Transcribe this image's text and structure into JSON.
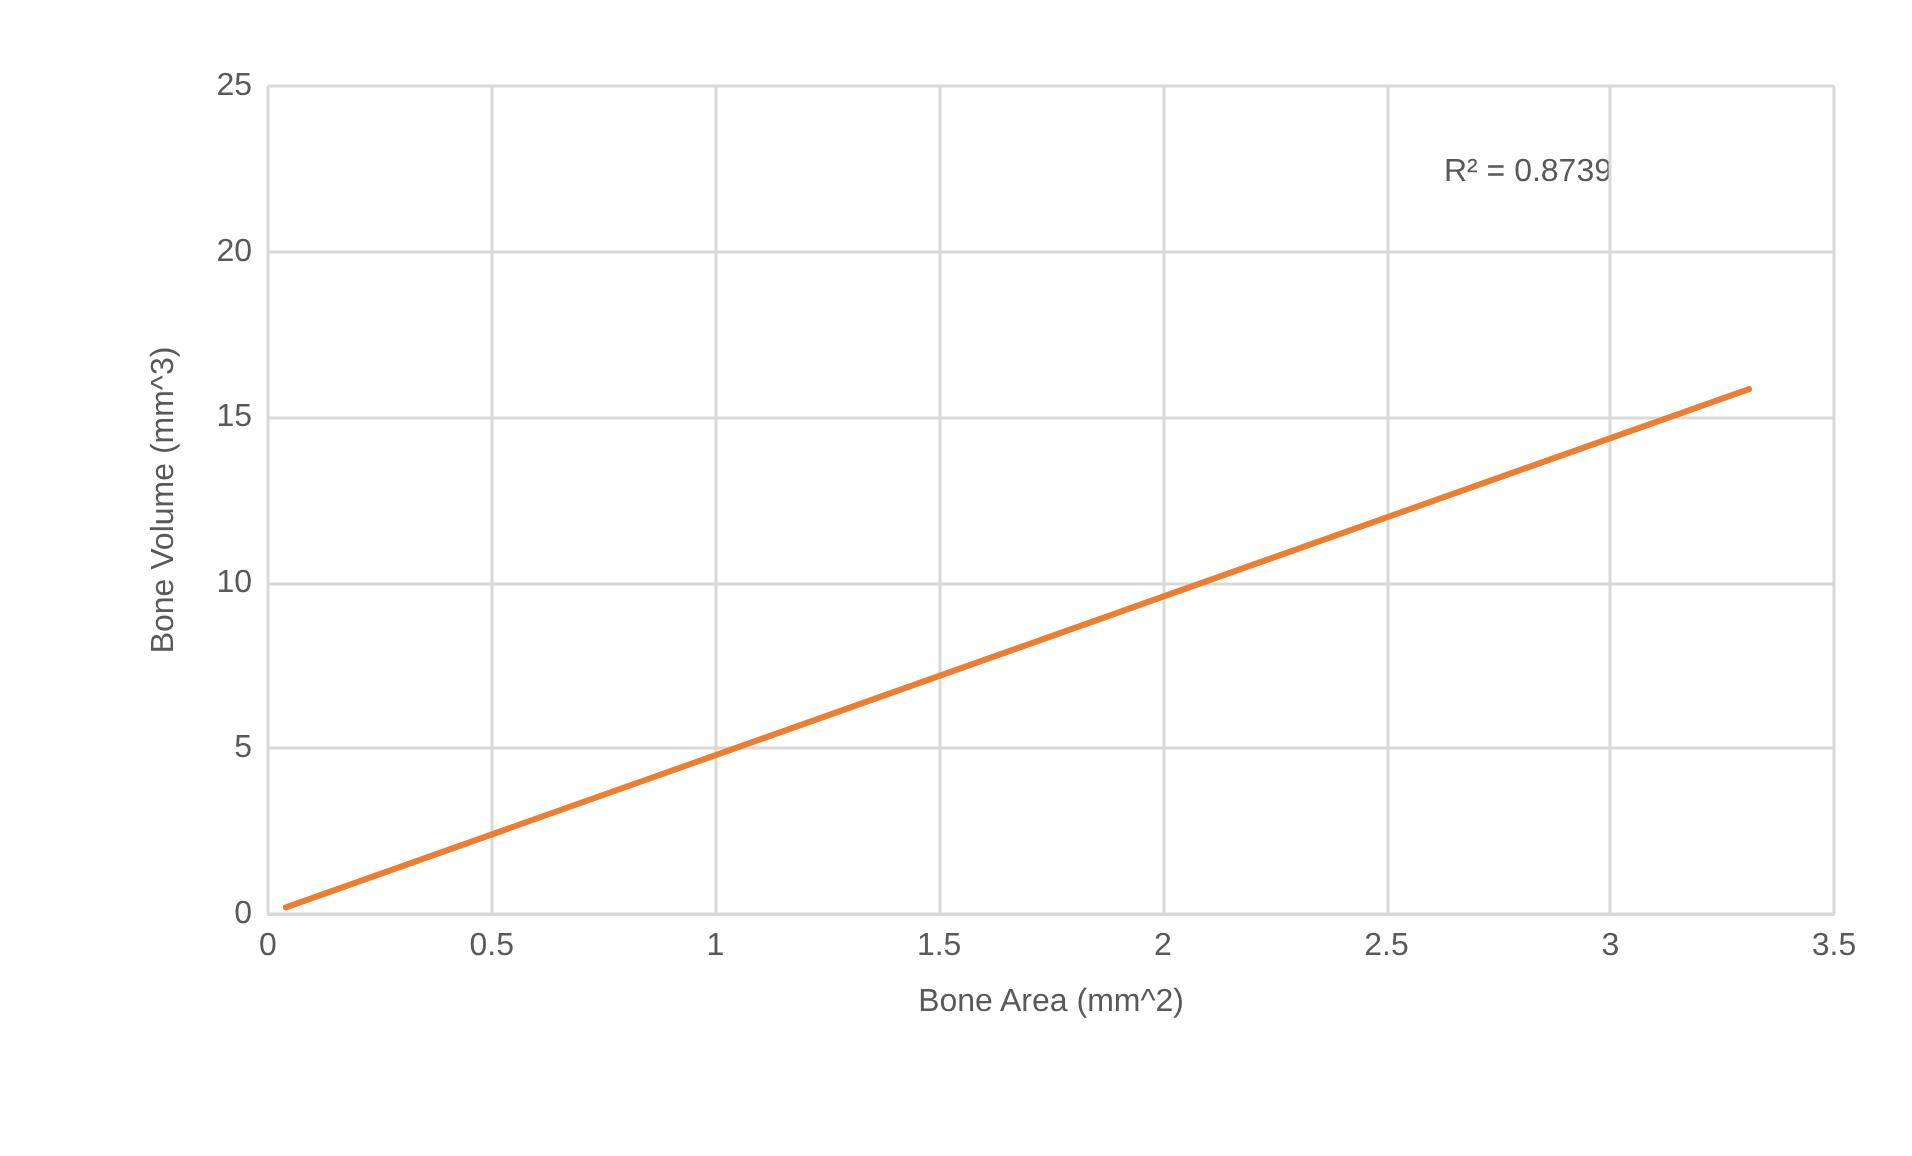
{
  "chart_data": {
    "type": "line",
    "xlabel": "Bone Area (mm^2)",
    "ylabel": "Bone Volume (mm^3)",
    "x": [
      0.04,
      3.31
    ],
    "series": [
      {
        "color": "#ed7d31",
        "values": [
          0.2,
          15.85
        ]
      }
    ],
    "xlim": [
      0,
      3.5
    ],
    "xticks": [
      0,
      0.5,
      1,
      1.5,
      2,
      2.5,
      3,
      3.5
    ],
    "ylim": [
      0,
      25
    ],
    "yticks": [
      0,
      5,
      10,
      15,
      20,
      25
    ],
    "annotations": [
      "R² = 0.8739"
    ],
    "grid": true,
    "marker": "none",
    "line_style": "solid"
  }
}
